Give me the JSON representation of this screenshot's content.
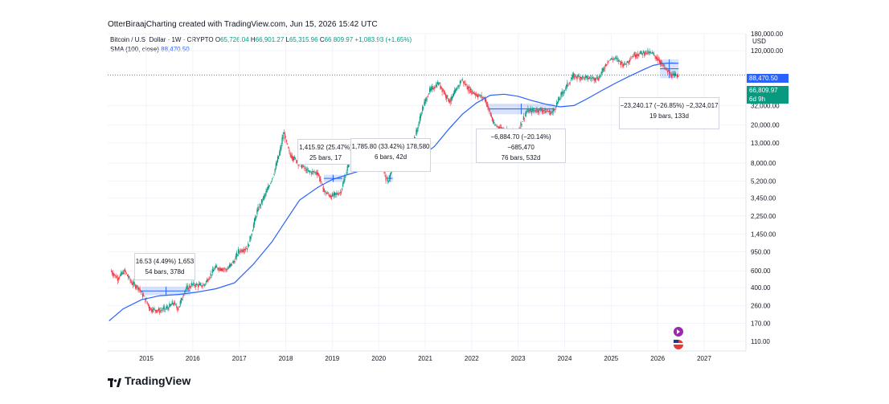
{
  "header": {
    "credit": "OtterBiraajCharting created with TradingView.com, Jun 15, 2026 15:42 UTC",
    "symbol": "Bitcoin / U.S. Dollar · 1W · CRYPTO",
    "ohlc": {
      "o_label": "O",
      "o": "65,726.04",
      "h_label": "H",
      "h": "66,901.27",
      "l_label": "L",
      "l": "65,315.96",
      "c_label": "C",
      "c": "66,809.97",
      "change": "+1,083.93 (+1.65%)"
    },
    "indicator_label": "SMA (100, close)",
    "indicator_value": "88,470.50",
    "currency": "USD"
  },
  "price_labels": {
    "sma": "88,470.50",
    "last": "66,809.97",
    "countdown": "6d 9h"
  },
  "brand": "TradingView",
  "chart_data": {
    "type": "line",
    "scale": "log",
    "xlim": [
      2014.2,
      2027.5
    ],
    "ylim": [
      110,
      180000
    ],
    "x_ticks": [
      "2015",
      "2016",
      "2017",
      "2018",
      "2019",
      "2020",
      "2021",
      "2022",
      "2023",
      "2024",
      "2025",
      "2026",
      "2027"
    ],
    "y_ticks": [
      "180,000.00",
      "120,000.00",
      "32,000.00",
      "20,000.00",
      "13,000.00",
      "8,000.00",
      "5,200.00",
      "3,450.00",
      "2,250.00",
      "1,450.00",
      "950.00",
      "600.00",
      "400.00",
      "260.00",
      "170.00",
      "110.00"
    ],
    "series": [
      {
        "name": "",
        "kind": "price",
        "x": [
          2014.25,
          2014.4,
          2014.55,
          2014.7,
          2014.85,
          2015.0,
          2015.1,
          2015.3,
          2015.5,
          2015.6,
          2015.7,
          2015.85,
          2016.0,
          2016.25,
          2016.5,
          2016.75,
          2016.9,
          2017.0,
          2017.2,
          2017.4,
          2017.6,
          2017.75,
          2017.9,
          2017.97,
          2018.1,
          2018.3,
          2018.5,
          2018.7,
          2018.85,
          2019.0,
          2019.2,
          2019.45,
          2019.6,
          2019.85,
          2020.05,
          2020.2,
          2020.4,
          2020.6,
          2020.8,
          2020.95,
          2021.1,
          2021.3,
          2021.55,
          2021.8,
          2021.95,
          2022.1,
          2022.3,
          2022.5,
          2022.85,
          2023.0,
          2023.2,
          2023.5,
          2023.75,
          2023.95,
          2024.2,
          2024.5,
          2024.75,
          2024.95,
          2025.1,
          2025.3,
          2025.5,
          2025.75,
          2025.9,
          2026.05,
          2026.2,
          2026.35,
          2026.45
        ],
        "y": [
          600,
          500,
          600,
          450,
          400,
          300,
          240,
          230,
          250,
          280,
          240,
          380,
          430,
          420,
          650,
          620,
          750,
          960,
          1050,
          2500,
          4000,
          6000,
          11000,
          17000,
          10000,
          8000,
          6500,
          6400,
          4000,
          3600,
          4000,
          11000,
          10000,
          7500,
          9000,
          5000,
          9000,
          11000,
          15000,
          29000,
          45000,
          55000,
          35000,
          60000,
          48000,
          42000,
          38000,
          20000,
          17000,
          17000,
          28000,
          29000,
          27000,
          42000,
          65000,
          62000,
          62000,
          95000,
          100000,
          85000,
          108000,
          115000,
          112000,
          95000,
          75000,
          65000,
          66810
        ]
      },
      {
        "name": "",
        "kind": "sma",
        "x": [
          2014.2,
          2014.5,
          2014.9,
          2015.3,
          2015.7,
          2016.1,
          2016.5,
          2016.9,
          2017.3,
          2017.7,
          2018.0,
          2018.3,
          2018.7,
          2019.0,
          2019.3,
          2019.7,
          2020.0,
          2020.3,
          2020.6,
          2020.9,
          2021.2,
          2021.5,
          2021.8,
          2022.1,
          2022.4,
          2022.7,
          2023.0,
          2023.3,
          2023.6,
          2023.9,
          2024.2,
          2024.5,
          2024.8,
          2025.1,
          2025.4,
          2025.7,
          2025.9,
          2026.1,
          2026.3,
          2026.45
        ],
        "y": [
          180,
          240,
          300,
          330,
          340,
          360,
          390,
          450,
          700,
          1200,
          2000,
          3300,
          4500,
          5400,
          6000,
          6900,
          7500,
          7800,
          8300,
          9300,
          12000,
          18000,
          26000,
          34000,
          41000,
          42000,
          40000,
          36000,
          33000,
          31000,
          32000,
          38000,
          46000,
          55000,
          65000,
          76000,
          84000,
          88000,
          89000,
          88470
        ]
      }
    ],
    "measurements": [
      {
        "line1": "16.53 (4.49%) 1,653",
        "line2": "54 bars, 378d",
        "from": [
          2014.9,
          360
        ],
        "to": [
          2015.95,
          380
        ]
      },
      {
        "line1": "1,415.92 (25.47%)",
        "line2": "25 bars, 17",
        "from": [
          2018.82,
          5500
        ],
        "to": [
          2019.22,
          5600
        ]
      },
      {
        "line1": "1,785.80 (33.42%) 178,580",
        "line2": "6 bars, 42d",
        "from": [
          2020.18,
          5500
        ],
        "to": [
          2020.3,
          5600
        ]
      },
      {
        "line1": "−6,884.70 (−20.14%) −685,470",
        "line2": "76 bars, 532d",
        "from": [
          2022.35,
          31000
        ],
        "to": [
          2023.78,
          28000
        ]
      },
      {
        "line1": "−23,240.17 (−26.85%) −2,324,017",
        "line2": "19 bars, 133d",
        "from": [
          2026.05,
          90000
        ],
        "to": [
          2026.45,
          66810
        ]
      }
    ],
    "colors": {
      "up": "#089981",
      "down": "#f23645",
      "sma": "#2962ff",
      "range": "#2962ff"
    }
  }
}
